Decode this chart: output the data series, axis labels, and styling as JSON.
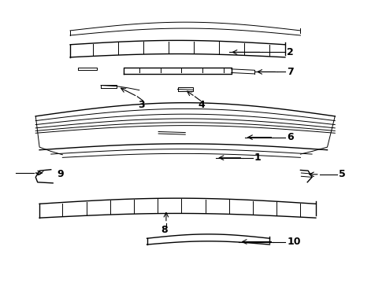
{
  "bg_color": "#ffffff",
  "line_color": "#000000",
  "label_color": "#000000",
  "figsize": [
    4.9,
    3.6
  ],
  "dpi": 100,
  "lw_thin": 0.7,
  "lw_med": 1.0,
  "label_fs": 9
}
